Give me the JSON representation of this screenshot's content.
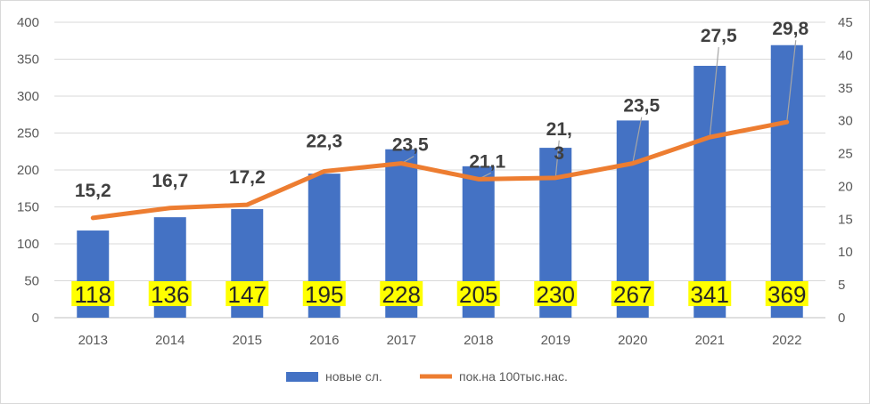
{
  "chart_data": {
    "type": "bar+line",
    "categories": [
      "2013",
      "2014",
      "2015",
      "2016",
      "2017",
      "2018",
      "2019",
      "2020",
      "2021",
      "2022"
    ],
    "series": [
      {
        "name": "новые сл.",
        "type": "bar",
        "axis": "left",
        "color": "#4472c4",
        "values": [
          118,
          136,
          147,
          195,
          228,
          205,
          230,
          267,
          341,
          369
        ],
        "labels": [
          "118",
          "136",
          "147",
          "195",
          "228",
          "205",
          "230",
          "267",
          "341",
          "369"
        ],
        "label_highlight": "#ffff00"
      },
      {
        "name": "пок.на 100тыс.нас.",
        "type": "line",
        "axis": "right",
        "color": "#ed7d31",
        "values": [
          15.2,
          16.7,
          17.2,
          22.3,
          23.5,
          21.1,
          21.3,
          23.5,
          27.5,
          29.8
        ],
        "labels": [
          "15,2",
          "16,7",
          "17,2",
          "22,3",
          "23,5",
          "21,1",
          "21,\n3",
          "23,5",
          "27,5",
          "29,8"
        ]
      }
    ],
    "y_left": {
      "min": 0,
      "max": 400,
      "step": 50
    },
    "y_right": {
      "min": 0,
      "max": 45,
      "step": 5
    },
    "grid": true,
    "legend_position": "bottom"
  }
}
